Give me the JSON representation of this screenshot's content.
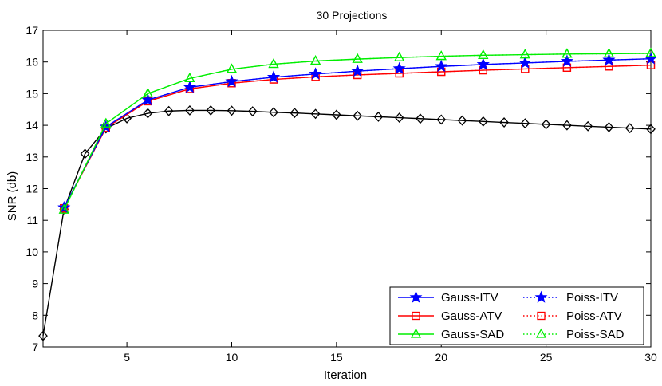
{
  "chart_data": {
    "type": "line",
    "title": "30 Projections",
    "xlabel": "Iteration",
    "ylabel": "SNR (db)",
    "xlim": [
      1,
      30
    ],
    "ylim": [
      7,
      17
    ],
    "xticks": [
      5,
      10,
      15,
      20,
      25,
      30
    ],
    "yticks": [
      7,
      8,
      9,
      10,
      11,
      12,
      13,
      14,
      15,
      16,
      17
    ],
    "grid": false,
    "legend_position": "bottom-right",
    "series": [
      {
        "name": "Gauss-ITV",
        "color": "#0000ff",
        "line_style": "solid",
        "marker": "star",
        "x": [
          2,
          4,
          6,
          8,
          10,
          12,
          14,
          16,
          18,
          20,
          22,
          24,
          26,
          28,
          30
        ],
        "values": [
          11.4,
          13.95,
          14.8,
          15.2,
          15.38,
          15.52,
          15.62,
          15.71,
          15.79,
          15.86,
          15.92,
          15.97,
          16.02,
          16.06,
          16.1
        ]
      },
      {
        "name": "Gauss-ATV",
        "color": "#ff0000",
        "line_style": "solid",
        "marker": "square",
        "x": [
          2,
          4,
          6,
          8,
          10,
          12,
          14,
          16,
          18,
          20,
          22,
          24,
          26,
          28,
          30
        ],
        "values": [
          11.38,
          13.92,
          14.76,
          15.15,
          15.33,
          15.45,
          15.53,
          15.59,
          15.64,
          15.69,
          15.74,
          15.78,
          15.82,
          15.86,
          15.9
        ]
      },
      {
        "name": "Gauss-SAD",
        "color": "#00ee00",
        "line_style": "solid",
        "marker": "triangle",
        "x": [
          2,
          4,
          6,
          8,
          10,
          12,
          14,
          16,
          18,
          20,
          22,
          24,
          26,
          28,
          30
        ],
        "values": [
          11.33,
          14.05,
          15.0,
          15.48,
          15.77,
          15.93,
          16.03,
          16.09,
          16.14,
          16.18,
          16.21,
          16.23,
          16.25,
          16.26,
          16.27
        ]
      },
      {
        "name": "Poiss-ITV",
        "color": "#0000ff",
        "line_style": "dotted",
        "marker": "star",
        "x": [
          2,
          4,
          6,
          8,
          10,
          12,
          14,
          16,
          18,
          20,
          22,
          24,
          26,
          28,
          30
        ],
        "values": [
          11.4,
          13.95,
          14.8,
          15.2,
          15.38,
          15.52,
          15.62,
          15.71,
          15.79,
          15.86,
          15.92,
          15.97,
          16.02,
          16.06,
          16.1
        ]
      },
      {
        "name": "Poiss-ATV",
        "color": "#ff0000",
        "line_style": "dotted",
        "marker": "square",
        "x": [
          2,
          4,
          6,
          8,
          10,
          12,
          14,
          16,
          18,
          20,
          22,
          24,
          26,
          28,
          30
        ],
        "values": [
          11.38,
          13.92,
          14.76,
          15.15,
          15.33,
          15.45,
          15.53,
          15.59,
          15.64,
          15.69,
          15.74,
          15.78,
          15.82,
          15.86,
          15.9
        ]
      },
      {
        "name": "Poiss-SAD",
        "color": "#00ee00",
        "line_style": "dotted",
        "marker": "triangle",
        "x": [
          2,
          4,
          6,
          8,
          10,
          12,
          14,
          16,
          18,
          20,
          22,
          24,
          26,
          28,
          30
        ],
        "values": [
          11.33,
          14.05,
          15.0,
          15.48,
          15.77,
          15.93,
          16.03,
          16.09,
          16.14,
          16.18,
          16.21,
          16.23,
          16.25,
          16.26,
          16.27
        ]
      },
      {
        "name": "",
        "color": "#000000",
        "line_style": "solid",
        "marker": "diamond",
        "x": [
          1,
          2,
          3,
          4,
          5,
          6,
          7,
          8,
          9,
          10,
          11,
          12,
          13,
          14,
          15,
          16,
          17,
          18,
          19,
          20,
          21,
          22,
          23,
          24,
          25,
          26,
          27,
          28,
          29,
          30
        ],
        "values": [
          7.35,
          11.35,
          13.1,
          13.9,
          14.22,
          14.38,
          14.45,
          14.47,
          14.47,
          14.46,
          14.44,
          14.41,
          14.39,
          14.36,
          14.33,
          14.3,
          14.27,
          14.24,
          14.21,
          14.18,
          14.15,
          14.12,
          14.09,
          14.06,
          14.03,
          14.0,
          13.97,
          13.94,
          13.91,
          13.88
        ]
      }
    ],
    "legend": [
      {
        "label": "Gauss-ITV",
        "series": 0
      },
      {
        "label": "Poiss-ITV",
        "series": 3
      },
      {
        "label": "Gauss-ATV",
        "series": 1
      },
      {
        "label": "Poiss-ATV",
        "series": 4
      },
      {
        "label": "Gauss-SAD",
        "series": 2
      },
      {
        "label": "Poiss-SAD",
        "series": 5
      }
    ]
  }
}
